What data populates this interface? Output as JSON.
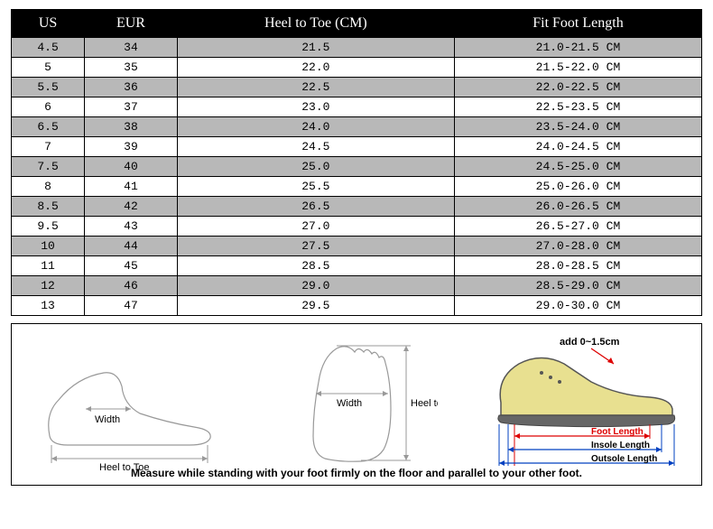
{
  "table": {
    "headers": [
      "US",
      "EUR",
      "Heel to Toe (CM)",
      "Fit Foot Length"
    ],
    "rows": [
      [
        "4.5",
        "34",
        "21.5",
        "21.0-21.5 CM"
      ],
      [
        "5",
        "35",
        "22.0",
        "21.5-22.0 CM"
      ],
      [
        "5.5",
        "36",
        "22.5",
        "22.0-22.5 CM"
      ],
      [
        "6",
        "37",
        "23.0",
        "22.5-23.5 CM"
      ],
      [
        "6.5",
        "38",
        "24.0",
        "23.5-24.0 CM"
      ],
      [
        "7",
        "39",
        "24.5",
        "24.0-24.5 CM"
      ],
      [
        "7.5",
        "40",
        "25.0",
        "24.5-25.0 CM"
      ],
      [
        "8",
        "41",
        "25.5",
        "25.0-26.0 CM"
      ],
      [
        "8.5",
        "42",
        "26.5",
        "26.0-26.5 CM"
      ],
      [
        "9.5",
        "43",
        "27.0",
        "26.5-27.0 CM"
      ],
      [
        "10",
        "44",
        "27.5",
        "27.0-28.0 CM"
      ],
      [
        "11",
        "45",
        "28.5",
        "28.0-28.5 CM"
      ],
      [
        "12",
        "46",
        "29.0",
        "28.5-29.0 CM"
      ],
      [
        "13",
        "47",
        "29.5",
        "29.0-30.0 CM"
      ]
    ],
    "header_bg": "#000000",
    "header_fg": "#ffffff",
    "odd_row_bg": "#b8b8b8",
    "even_row_bg": "#ffffff",
    "border_color": "#000000",
    "cell_fontsize": 13,
    "header_fontsize": 16
  },
  "diagram": {
    "foot_side": {
      "width_label": "Width",
      "heel_toe_label": "Heel to Toe"
    },
    "foot_top": {
      "width_label": "Width",
      "heel_toe_label": "Heel to Toe"
    },
    "shoe": {
      "add_label": "add 0~1.5cm",
      "foot_length_label": "Foot Length",
      "insole_length_label": "Insole Length",
      "outsole_length_label": "Outsole Length",
      "shoe_fill": "#e8e090",
      "sole_fill": "#666666"
    },
    "instruction": "Measure while standing with your foot firmly on the floor and parallel to your other foot.",
    "line_color": "#888888",
    "text_color": "#000000",
    "red_color": "#d00000",
    "blue_color": "#0040c0"
  }
}
